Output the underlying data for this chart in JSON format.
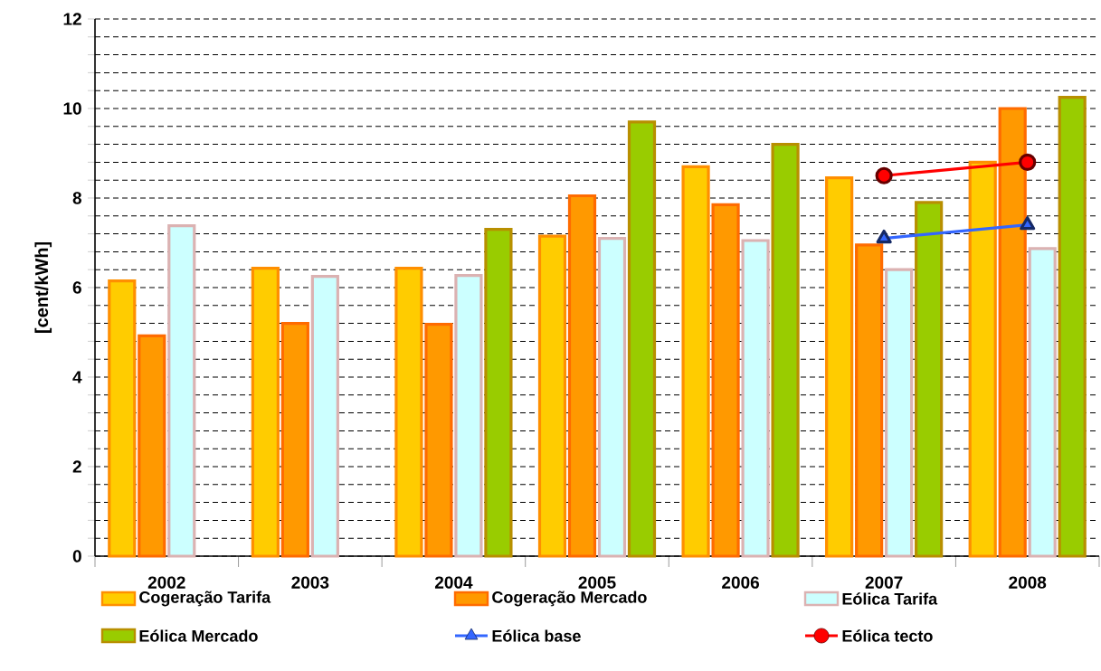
{
  "chart_data": {
    "type": "bar",
    "ylabel": "[cent/kWh]",
    "categories": [
      "2002",
      "2003",
      "2004",
      "2005",
      "2006",
      "2007",
      "2008"
    ],
    "series": [
      {
        "name": "Cogeração Tarifa",
        "color": "#ffcc00",
        "values": [
          6.15,
          6.43,
          6.43,
          7.15,
          8.7,
          8.45,
          8.8
        ]
      },
      {
        "name": "Cogeração Mercado",
        "color": "#ff9900",
        "values": [
          4.92,
          5.2,
          5.18,
          8.05,
          7.85,
          6.95,
          10.0
        ]
      },
      {
        "name": "Eólica Tarifa",
        "color": "#ccffff",
        "values": [
          7.38,
          6.25,
          6.27,
          7.1,
          7.05,
          6.4,
          6.87
        ]
      },
      {
        "name": "Eólica Mercado",
        "color": "#99cc00",
        "values": [
          null,
          null,
          7.3,
          9.7,
          9.2,
          7.9,
          10.25
        ]
      },
      {
        "name": "Eólica base",
        "type": "line",
        "color": "#3366ff",
        "marker": "triangle",
        "values": [
          null,
          null,
          null,
          null,
          null,
          7.1,
          7.4
        ]
      },
      {
        "name": "Eólica tecto",
        "type": "line",
        "color": "#ff0000",
        "marker": "circle",
        "values": [
          null,
          null,
          null,
          null,
          null,
          8.5,
          8.8
        ]
      }
    ],
    "ylim": [
      0,
      12
    ],
    "yticks": [
      0,
      {
        "value": 0.4,
        "label": null
      },
      {
        "value": 0.8,
        "label": null
      },
      {
        "value": 1.2,
        "label": null
      },
      {
        "value": 1.6,
        "label": null
      },
      2,
      {
        "value": 2.4,
        "label": null
      },
      {
        "value": 2.8,
        "label": null
      },
      {
        "value": 3.2,
        "label": null
      },
      {
        "value": 3.6,
        "label": null
      },
      4,
      {
        "value": 4.4,
        "label": null
      },
      {
        "value": 4.8,
        "label": null
      },
      {
        "value": 5.2,
        "label": null
      },
      {
        "value": 5.6,
        "label": null
      },
      6,
      {
        "value": 6.4,
        "label": null
      },
      {
        "value": 6.8,
        "label": null
      },
      {
        "value": 7.2,
        "label": null
      },
      {
        "value": 7.6,
        "label": null
      },
      8,
      {
        "value": 8.4,
        "label": null
      },
      {
        "value": 8.8,
        "label": null
      },
      {
        "value": 9.2,
        "label": null
      },
      {
        "value": 9.6,
        "label": null
      },
      10,
      {
        "value": 10.4,
        "label": null
      },
      {
        "value": 10.8,
        "label": null
      },
      {
        "value": 11.2,
        "label": null
      },
      {
        "value": 11.6,
        "label": null
      },
      12
    ],
    "grid": "y",
    "legend": "bottom"
  }
}
